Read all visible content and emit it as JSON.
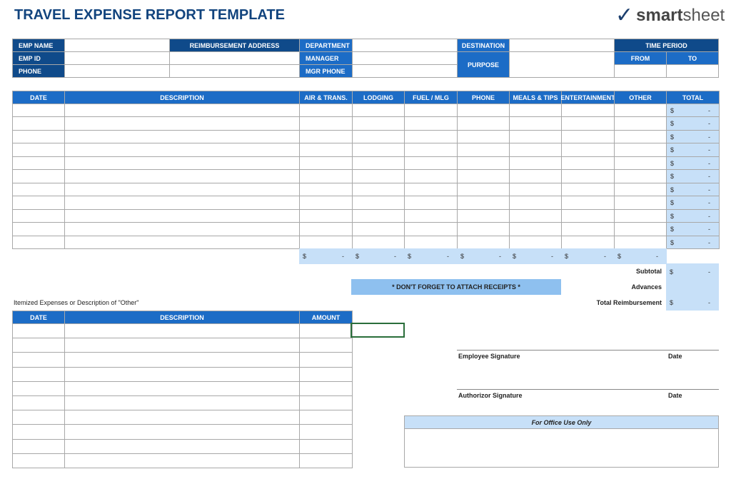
{
  "title": "TRAVEL EXPENSE REPORT TEMPLATE",
  "logo": {
    "text_bold": "smart",
    "text_rest": "sheet",
    "icon": "checkmark-icon"
  },
  "info": {
    "emp_name": "EMP NAME",
    "emp_id": "EMP ID",
    "phone": "PHONE",
    "reimbursement_address": "REIMBURSEMENT ADDRESS",
    "department": "DEPARTMENT",
    "manager": "MANAGER",
    "mgr_phone": "MGR PHONE",
    "destination": "DESTINATION",
    "purpose": "PURPOSE",
    "time_period": "TIME PERIOD",
    "from": "FROM",
    "to": "TO"
  },
  "expenses": {
    "columns": [
      "DATE",
      "DESCRIPTION",
      "AIR & TRANS.",
      "LODGING",
      "FUEL / MLG",
      "PHONE",
      "MEALS & TIPS",
      "ENTERTAINMENT",
      "OTHER",
      "TOTAL"
    ],
    "row_count": 11,
    "row_total": {
      "currency": "$",
      "value": "-"
    },
    "column_totals": [
      {
        "currency": "$",
        "value": "-"
      },
      {
        "currency": "$",
        "value": "-"
      },
      {
        "currency": "$",
        "value": "-"
      },
      {
        "currency": "$",
        "value": "-"
      },
      {
        "currency": "$",
        "value": "-"
      },
      {
        "currency": "$",
        "value": "-"
      },
      {
        "currency": "$",
        "value": "-"
      }
    ]
  },
  "summary": {
    "subtotal_label": "Subtotal",
    "subtotal_currency": "$",
    "subtotal_value": "-",
    "advances_label": "Advances",
    "total_label": "Total Reimbursement",
    "total_currency": "$",
    "total_value": "-"
  },
  "banner": "* DON'T FORGET TO ATTACH RECEIPTS *",
  "itemized": {
    "note": "Itemized Expenses or Description of \"Other\"",
    "columns": [
      "DATE",
      "DESCRIPTION",
      "AMOUNT"
    ],
    "row_count": 10
  },
  "signatures": {
    "employee": "Employee Signature",
    "authorizor": "Authorizor Signature",
    "date": "Date"
  },
  "office": {
    "header": "For Office Use Only"
  },
  "colors": {
    "dark": "#0f4a8a",
    "medium": "#1c6cc6",
    "light": "#c7e0f8",
    "banner": "#8ec0ef"
  }
}
